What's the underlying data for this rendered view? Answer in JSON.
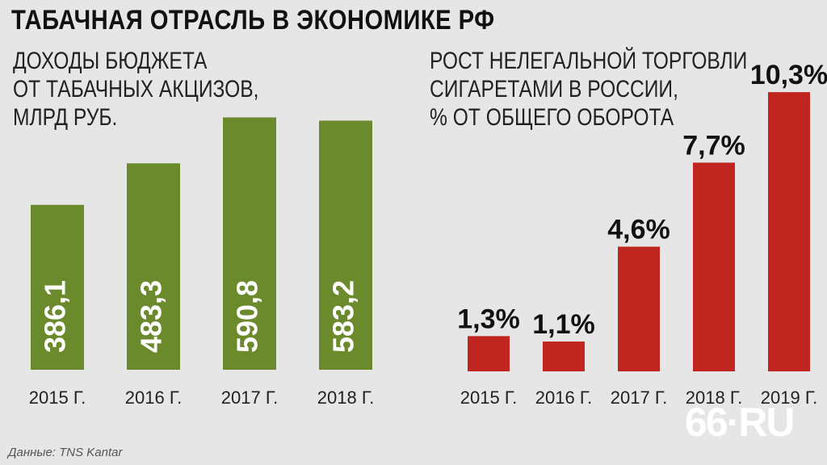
{
  "title": "ТАБАЧНАЯ ОТРАСЛЬ В ЭКОНОМИКЕ РФ",
  "source": "Данные: TNS Kantar",
  "logo": "66·RU",
  "colors": {
    "left_bars": "#6b8a2c",
    "right_bars": "#c0261f",
    "background": "#e6e6e6"
  },
  "chart_data": [
    {
      "type": "bar",
      "title": "ДОХОДЫ БЮДЖЕТА\nОТ ТАБАЧНЫХ АКЦИЗОВ,\nМЛРД РУБ.",
      "categories": [
        "2015 Г.",
        "2016 Г.",
        "2017 Г.",
        "2018 Г."
      ],
      "values": [
        386.1,
        483.3,
        590.8,
        583.2
      ],
      "value_labels": [
        "386,1",
        "483,3",
        "590,8",
        "583,2"
      ],
      "ylim": [
        0,
        620
      ],
      "grid": false,
      "legend": "none"
    },
    {
      "type": "bar",
      "title": "РОСТ НЕЛЕГАЛЬНОЙ ТОРГОВЛИ\nСИГАРЕТАМИ В РОССИИ,\n% ОТ ОБЩЕГО ОБОРОТА",
      "categories": [
        "2015 Г.",
        "2016 Г.",
        "2017 Г.",
        "2018 Г.",
        "2019 Г."
      ],
      "values": [
        1.3,
        1.1,
        4.6,
        7.7,
        10.3
      ],
      "value_labels": [
        "1,3%",
        "1,1%",
        "4,6%",
        "7,7%",
        "10,3%"
      ],
      "ylim": [
        0,
        10.9
      ],
      "grid": false,
      "legend": "none"
    }
  ]
}
